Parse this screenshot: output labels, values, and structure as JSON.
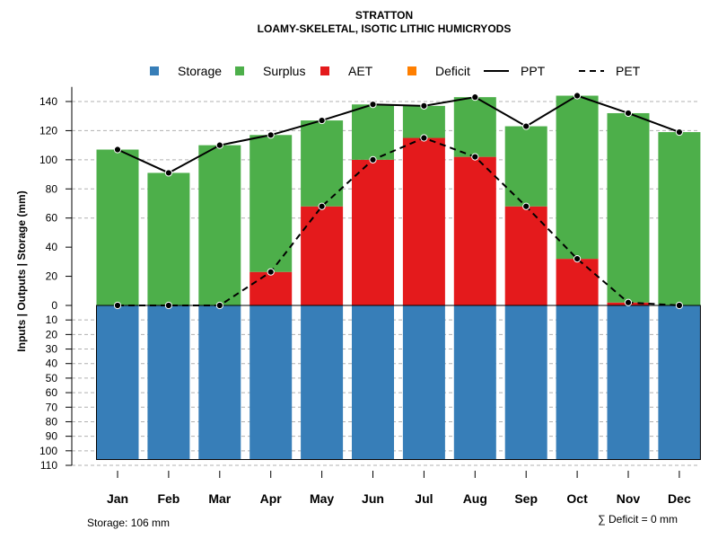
{
  "chart_data": {
    "type": "bar",
    "title": "STRATTON",
    "subtitle": "LOAMY-SKELETAL, ISOTIC LITHIC HUMICRYODS",
    "ylabel": "Inputs | Outputs | Storage    (mm)",
    "categories": [
      "Jan",
      "Feb",
      "Mar",
      "Apr",
      "May",
      "Jun",
      "Jul",
      "Aug",
      "Sep",
      "Oct",
      "Nov",
      "Dec"
    ],
    "legend": [
      {
        "label": "Storage",
        "color": "#377eb8",
        "kind": "box"
      },
      {
        "label": "Surplus",
        "color": "#4daf4a",
        "kind": "box"
      },
      {
        "label": "AET",
        "color": "#e41a1c",
        "kind": "box"
      },
      {
        "label": "Deficit",
        "color": "#ff7f00",
        "kind": "box"
      },
      {
        "label": "PPT",
        "color": "#000000",
        "kind": "solid"
      },
      {
        "label": "PET",
        "color": "#000000",
        "kind": "dashed"
      }
    ],
    "upper_ticks": [
      0,
      20,
      40,
      60,
      80,
      100,
      120,
      140
    ],
    "upper_ylim": [
      0,
      150
    ],
    "upper_gridlines": [
      60,
      80,
      100,
      120,
      140
    ],
    "lower_ticks": [
      0,
      10,
      20,
      30,
      40,
      50,
      60,
      70,
      80,
      90,
      100,
      110
    ],
    "lower_ylim": [
      0,
      110
    ],
    "series": [
      {
        "name": "AET",
        "values": [
          0,
          0,
          0,
          23,
          68,
          100,
          115,
          102,
          68,
          32,
          2,
          0
        ]
      },
      {
        "name": "Surplus",
        "values": [
          107,
          91,
          110,
          94,
          59,
          38,
          22,
          41,
          55,
          112,
          130,
          119
        ]
      },
      {
        "name": "Deficit",
        "values": [
          0,
          0,
          0,
          0,
          0,
          0,
          0,
          0,
          0,
          0,
          0,
          0
        ]
      },
      {
        "name": "Storage",
        "values": [
          106,
          106,
          106,
          106,
          106,
          106,
          106,
          106,
          106,
          106,
          106,
          106
        ]
      },
      {
        "name": "PPT",
        "values": [
          107,
          91,
          110,
          117,
          127,
          138,
          137,
          143,
          123,
          144,
          132,
          119
        ]
      },
      {
        "name": "PET",
        "values": [
          0,
          0,
          0,
          23,
          68,
          100,
          115,
          102,
          68,
          32,
          2,
          0
        ]
      }
    ],
    "storage_label": "Storage: 106 mm",
    "deficit_label": "∑ Deficit = 0 mm"
  }
}
